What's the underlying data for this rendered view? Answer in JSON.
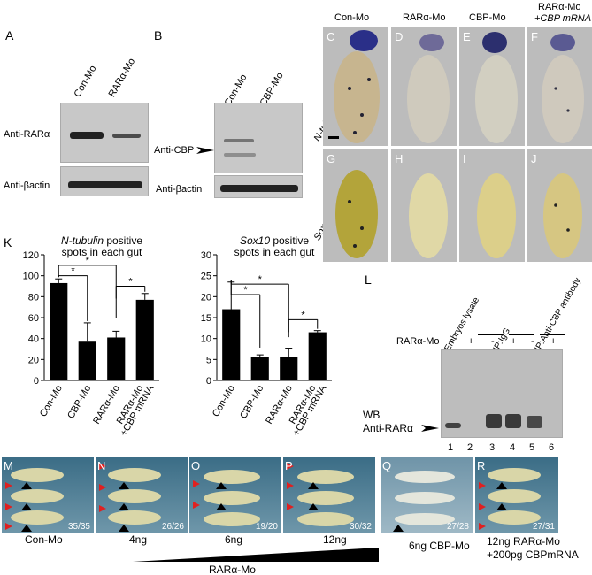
{
  "panels": {
    "A": "A",
    "B": "B",
    "C": "C",
    "D": "D",
    "E": "E",
    "F": "F",
    "G": "G",
    "H": "H",
    "I": "I",
    "J": "J",
    "K": "K",
    "L": "L",
    "M": "M",
    "N": "N",
    "O": "O",
    "P": "P",
    "Q": "Q",
    "R": "R"
  },
  "panelA": {
    "lanes": [
      "Con-Mo",
      "RARα-Mo"
    ],
    "rows": [
      "Anti-RARα",
      "Anti-βactin"
    ]
  },
  "panelB": {
    "lanes": [
      "Con-Mo",
      "CBP-Mo"
    ],
    "rows": [
      "Anti-CBP",
      "Anti-βactin"
    ]
  },
  "guts": {
    "columns": [
      "Con-Mo",
      "RARα-Mo",
      "CBP-Mo",
      "RARα-Mo",
      "+CBP mRNA"
    ],
    "row1": "N-tubulin",
    "row2": "Sox10"
  },
  "panelL": {
    "col_headers": [
      "Embryos lysate",
      "IP:IgG",
      "IP:Anti-CBP antibody"
    ],
    "signs": [
      "-",
      "+",
      "-",
      "+",
      "-",
      "+"
    ],
    "row_label": "RARα-Mo",
    "wb_label": "WB",
    "wb_target": "Anti-RARα",
    "lane_numbers": [
      "1",
      "2",
      "3",
      "4",
      "5",
      "6"
    ]
  },
  "tadpoles": {
    "fractions": [
      "35/35",
      "26/26",
      "19/20",
      "30/32",
      "27/28",
      "27/31"
    ],
    "labels": [
      "Con-Mo",
      "4ng",
      "6ng",
      "12ng",
      "6ng CBP-Mo",
      "12ng RARα-Mo",
      "+200pg CBPmRNA"
    ],
    "gradient_label": "RARα-Mo"
  },
  "chart_data": [
    {
      "type": "bar",
      "title": "N-tubulin positive spots in each gut",
      "categories": [
        "Con-Mo",
        "CBP-Mo",
        "RARα-Mo",
        "RARα-Mo +CBP mRNA"
      ],
      "values": [
        93,
        37,
        41,
        77
      ],
      "errors": [
        4,
        18,
        6,
        6
      ],
      "ylim": [
        0,
        120
      ],
      "yticks": [
        0,
        20,
        40,
        60,
        80,
        100,
        120
      ],
      "significance": [
        "*",
        "*",
        "*"
      ]
    },
    {
      "type": "bar",
      "title": "Sox10 positive spots in each gut",
      "categories": [
        "Con-Mo",
        "CBP-Mo",
        "RARα-Mo",
        "RARα-Mo +CBP mRNA"
      ],
      "values": [
        17,
        5.5,
        5.5,
        11.5
      ],
      "errors": [
        6.5,
        0.6,
        2.2,
        0.4
      ],
      "ylim": [
        0,
        30
      ],
      "yticks": [
        0,
        5,
        10,
        15,
        20,
        25,
        30
      ],
      "significance": [
        "*",
        "*",
        "*"
      ]
    }
  ],
  "colors": {
    "bar": "#000000",
    "arrow_red": "#e02020",
    "arrow_black": "#000000"
  }
}
